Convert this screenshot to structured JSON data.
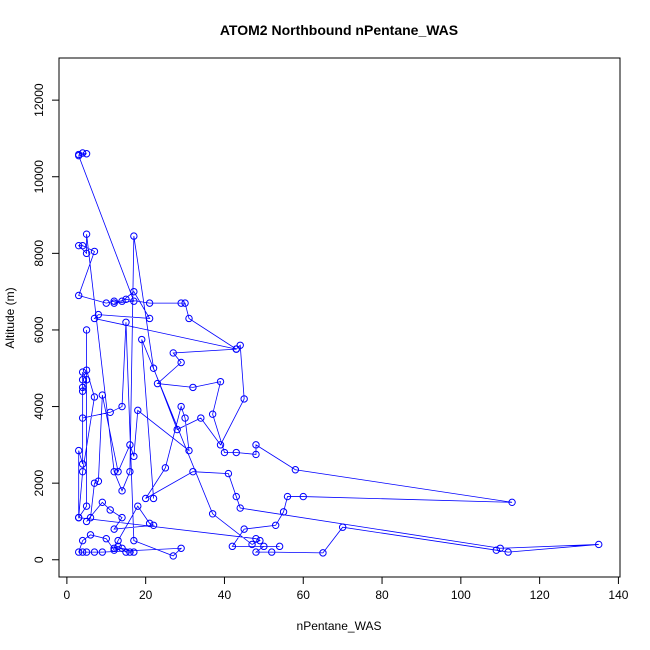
{
  "chart_data": {
    "type": "line",
    "title": "ATOM2 Northbound nPentane_WAS",
    "x_label": "nPentane_WAS",
    "y_label": "Altitude (m)",
    "xlim": [
      -2,
      140.4
    ],
    "ylim": [
      -450,
      13100
    ],
    "xticks": [
      0,
      20,
      40,
      60,
      80,
      100,
      120,
      140
    ],
    "yticks": [
      0,
      2000,
      4000,
      6000,
      8000,
      10000,
      12000
    ],
    "color": "#0000ff",
    "grid": false,
    "series": [
      {
        "name": "nPentane_WAS",
        "x": [
          3,
          4,
          5,
          3,
          17,
          12,
          15,
          21,
          29,
          30,
          31,
          43,
          44,
          45,
          39,
          34,
          28,
          22,
          17,
          16,
          14,
          12,
          5,
          5,
          3,
          4,
          7,
          3,
          10,
          12,
          14,
          17,
          21,
          8,
          7,
          43,
          27,
          29,
          23,
          32,
          39,
          37,
          40,
          43,
          48,
          48,
          58,
          113,
          60,
          56,
          55,
          53,
          45,
          42,
          54,
          50,
          48,
          52,
          65,
          70,
          109,
          112,
          135,
          110,
          44,
          43,
          41,
          32,
          20,
          25,
          29,
          30,
          31,
          18,
          17,
          16,
          13,
          9,
          8,
          7,
          6,
          5,
          9,
          11,
          14,
          12,
          22,
          21,
          18,
          13,
          12,
          13,
          15,
          16,
          17,
          14,
          12,
          10,
          6,
          4,
          3,
          4,
          5,
          7,
          9,
          29,
          27,
          17,
          15,
          14,
          11,
          4,
          4,
          4,
          4,
          5,
          4,
          4,
          3,
          3,
          5,
          5,
          5,
          7,
          4,
          3,
          48,
          49,
          47,
          37,
          19,
          22
        ],
        "values": [
          10580,
          10620,
          10600,
          10550,
          6750,
          6700,
          6800,
          6700,
          6700,
          6700,
          6300,
          5500,
          5600,
          4200,
          3000,
          3700,
          3400,
          5000,
          8450,
          2300,
          1800,
          2300,
          8500,
          8000,
          8200,
          8200,
          8050,
          6900,
          6700,
          6750,
          6750,
          7000,
          6300,
          6400,
          6300,
          5500,
          5400,
          5150,
          4600,
          4500,
          4650,
          3800,
          2800,
          2800,
          2750,
          3000,
          2350,
          1500,
          1650,
          1650,
          1250,
          900,
          800,
          350,
          350,
          350,
          200,
          200,
          180,
          850,
          250,
          200,
          400,
          300,
          1350,
          1650,
          2250,
          2300,
          1600,
          2400,
          4000,
          3700,
          2850,
          3900,
          2700,
          3000,
          2300,
          4300,
          2050,
          2000,
          1100,
          1000,
          1500,
          1300,
          1100,
          800,
          900,
          950,
          1400,
          500,
          300,
          350,
          200,
          200,
          200,
          300,
          250,
          550,
          650,
          500,
          200,
          200,
          200,
          200,
          200,
          300,
          100,
          500,
          6200,
          4000,
          3850,
          3700,
          4500,
          4700,
          4900,
          4700,
          4400,
          2500,
          2850,
          1100,
          1400,
          6000,
          4950,
          4250,
          2300,
          1100,
          550,
          500,
          400,
          1200,
          5750,
          1600
        ]
      }
    ]
  }
}
